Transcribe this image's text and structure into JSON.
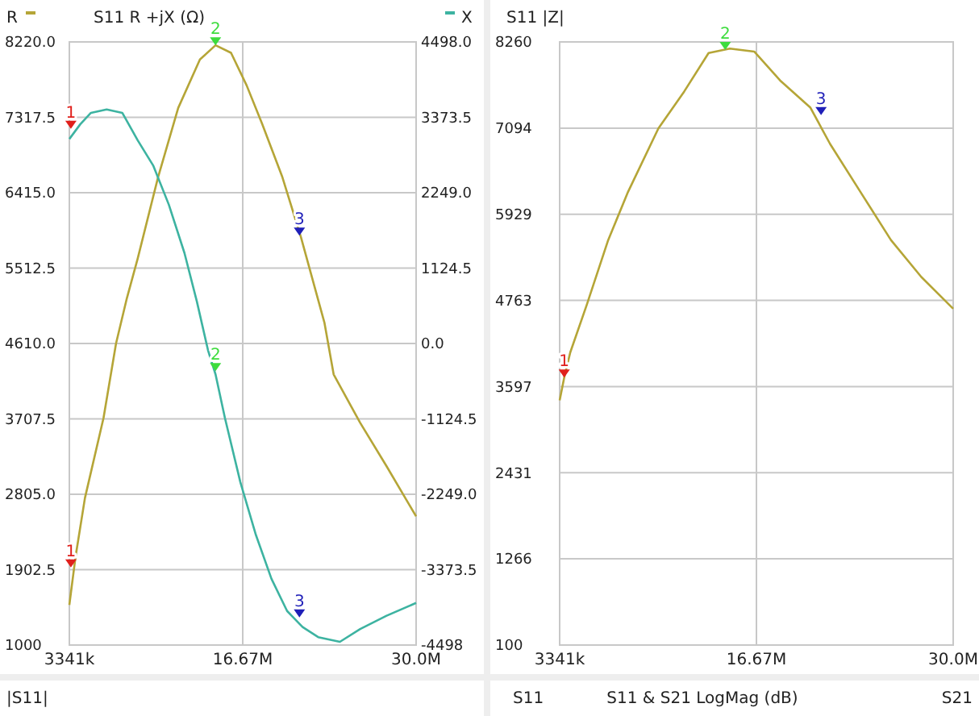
{
  "chart_data": [
    {
      "type": "line",
      "title": "S11 R +jX (Ω)",
      "legend": "top",
      "grid": true,
      "x": [
        3341000,
        3820000,
        4540000,
        5970000,
        6930000,
        7760000,
        8600000,
        10160000,
        11710000,
        13380000,
        14580000,
        15770000,
        16970000,
        18160000,
        19720000,
        21150000,
        22950000,
        23660000,
        25700000,
        27730000,
        30000000
      ],
      "series": [
        {
          "name": "R",
          "color": "#b5a537",
          "values": [
            1480,
            2060,
            2760,
            3720,
            4610,
            5150,
            5630,
            6600,
            7430,
            8010,
            8180,
            8090,
            7700,
            7240,
            6600,
            5880,
            4860,
            4240,
            3660,
            3140,
            2540
          ]
        },
        {
          "name": "X",
          "color": "#3db3a1",
          "axis": "y2",
          "x": [
            3341000,
            4180000,
            5000000,
            6210000,
            7410000,
            8600000,
            9800000,
            10990000,
            12190000,
            13140000,
            14000000,
            14580000,
            15300000,
            16490000,
            17690000,
            18880000,
            20080000,
            21270000,
            22470000,
            24140000,
            25700000,
            27730000,
            30000000
          ],
          "values": [
            3050,
            3270,
            3440,
            3490,
            3440,
            3030,
            2650,
            2070,
            1350,
            630,
            -100,
            -460,
            -1110,
            -2070,
            -2860,
            -3510,
            -3990,
            -4230,
            -4380,
            -4450,
            -4260,
            -4060,
            -3870
          ]
        }
      ],
      "xlim": [
        3341000,
        30000000
      ],
      "xticks": [
        {
          "value": 3341000,
          "label": "3341k"
        },
        {
          "value": 16670000,
          "label": "16.67M"
        },
        {
          "value": 30000000,
          "label": "30.0M"
        }
      ],
      "ylim": [
        1000,
        8220
      ],
      "yticks": [
        1000,
        1902.5,
        {
          "value": 2805,
          "label": "2805.0"
        },
        3707.5,
        {
          "value": 4610,
          "label": "4610.0"
        },
        5512.5,
        {
          "value": 6415,
          "label": "6415.0"
        },
        7317.5,
        {
          "value": 8220,
          "label": "8220.0"
        }
      ],
      "y2lim": [
        -4498,
        4498
      ],
      "y2ticks": [
        -4498,
        -3373.5,
        {
          "value": -2249,
          "label": "-2249.0"
        },
        -1124.5,
        {
          "value": 0,
          "label": "0.0"
        },
        1124.5,
        {
          "value": 2249,
          "label": "2249.0"
        },
        3373.5,
        {
          "value": 4498,
          "label": "4498.0"
        }
      ],
      "annotations": [
        {
          "text": "1",
          "x": 3460000,
          "y": 1930
        },
        {
          "text": "2",
          "x": 14580000,
          "y": 8180
        },
        {
          "text": "3",
          "x": 21030000,
          "y": 5900
        },
        {
          "text": "1",
          "x": 3460000,
          "y": 7180
        },
        {
          "text": "2",
          "x": 14580000,
          "y": 4280
        },
        {
          "text": "3",
          "x": 21030000,
          "y": 1330
        }
      ]
    },
    {
      "type": "line",
      "title": "S11 |Z|",
      "grid": true,
      "x": [
        3341000,
        3650000,
        4060000,
        5190000,
        6630000,
        7970000,
        10030000,
        11780000,
        13430000,
        14870000,
        16520000,
        18270000,
        20330000,
        21660000,
        23720000,
        25780000,
        27840000,
        30000000
      ],
      "series": [
        {
          "color": "#b5a537",
          "values": [
            3410,
            3720,
            4060,
            4710,
            5580,
            6230,
            7090,
            7590,
            8110,
            8170,
            8130,
            7740,
            7370,
            6880,
            6230,
            5580,
            5080,
            4650
          ]
        }
      ],
      "xlim": [
        3341000,
        30000000
      ],
      "xticks": [
        {
          "value": 3341000,
          "label": "3341k"
        },
        {
          "value": 16670000,
          "label": "16.67M"
        },
        {
          "value": 30000000,
          "label": "30.0M"
        }
      ],
      "ylim": [
        100,
        8260
      ],
      "yticks": [
        100,
        1266,
        2431,
        3597,
        4763,
        5929,
        7094,
        8260
      ],
      "annotations": [
        {
          "text": "1",
          "x": 3650000,
          "y": 3720
        },
        {
          "text": "2",
          "x": 14560000,
          "y": 8150
        },
        {
          "text": "3",
          "x": 21050000,
          "y": 7270
        }
      ]
    },
    {
      "type": "other",
      "title": "|S11|"
    },
    {
      "type": "other",
      "title": "S11 & S21 LogMag (dB)",
      "annotations": [
        "S11",
        "S21"
      ]
    }
  ]
}
